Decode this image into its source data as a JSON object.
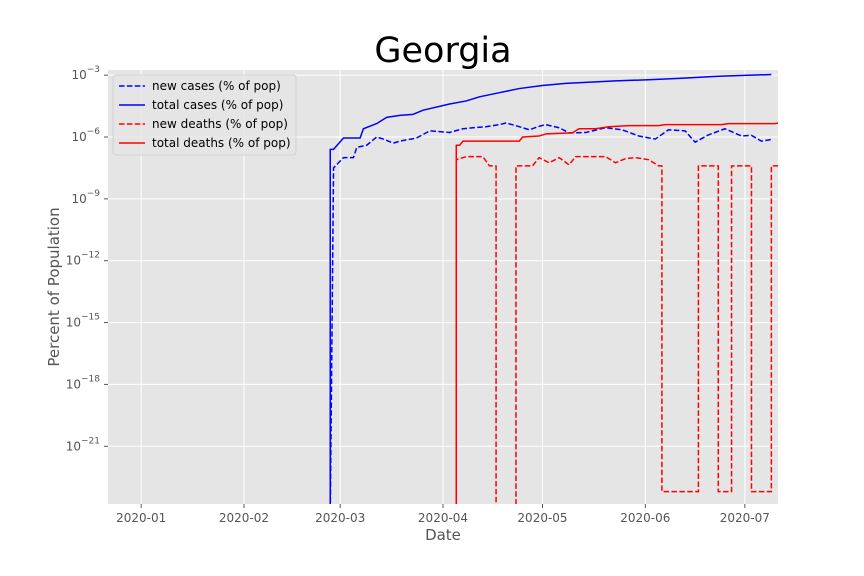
{
  "chart_data": {
    "type": "line",
    "title": "Georgia",
    "xlabel": "Date",
    "ylabel": "Percent of Population",
    "y_scale": "log",
    "grid": true,
    "legend_position": "top-left",
    "x_ticks": [
      "2020-01",
      "2020-02",
      "2020-03",
      "2020-04",
      "2020-05",
      "2020-06",
      "2020-07"
    ],
    "y_ticks": [
      {
        "exp": -3
      },
      {
        "exp": -6
      },
      {
        "exp": -9
      },
      {
        "exp": -12
      },
      {
        "exp": -15
      },
      {
        "exp": -18
      },
      {
        "exp": -21
      }
    ],
    "xlim": [
      "2019-12-22",
      "2020-07-11"
    ],
    "ylim_exp": [
      -23.8,
      -2.75
    ],
    "series": [
      {
        "name": "new cases (% of pop)",
        "color": "#0000ff",
        "style": "dashed",
        "points": [
          [
            "2020-02-27",
            -24.5
          ],
          [
            "2020-02-28",
            -7.5
          ],
          [
            "2020-03-02",
            -7.0
          ],
          [
            "2020-03-05",
            -7.0
          ],
          [
            "2020-03-06",
            -6.5
          ],
          [
            "2020-03-09",
            -6.4
          ],
          [
            "2020-03-12",
            -6.0
          ],
          [
            "2020-03-14",
            -6.1
          ],
          [
            "2020-03-17",
            -6.3
          ],
          [
            "2020-03-19",
            -6.2
          ],
          [
            "2020-03-24",
            -6.05
          ],
          [
            "2020-03-28",
            -5.7
          ],
          [
            "2020-04-03",
            -5.78
          ],
          [
            "2020-04-07",
            -5.6
          ],
          [
            "2020-04-10",
            -5.55
          ],
          [
            "2020-04-14",
            -5.5
          ],
          [
            "2020-04-18",
            -5.4
          ],
          [
            "2020-04-20",
            -5.32
          ],
          [
            "2020-04-23",
            -5.45
          ],
          [
            "2020-04-27",
            -5.65
          ],
          [
            "2020-04-30",
            -5.48
          ],
          [
            "2020-05-02",
            -5.4
          ],
          [
            "2020-05-06",
            -5.55
          ],
          [
            "2020-05-09",
            -5.8
          ],
          [
            "2020-05-14",
            -5.78
          ],
          [
            "2020-05-20",
            -5.55
          ],
          [
            "2020-05-25",
            -5.65
          ],
          [
            "2020-05-30",
            -5.95
          ],
          [
            "2020-06-04",
            -6.1
          ],
          [
            "2020-06-08",
            -5.65
          ],
          [
            "2020-06-13",
            -5.7
          ],
          [
            "2020-06-16",
            -6.25
          ],
          [
            "2020-06-20",
            -5.9
          ],
          [
            "2020-06-25",
            -5.6
          ],
          [
            "2020-06-30",
            -5.95
          ],
          [
            "2020-07-03",
            -5.92
          ],
          [
            "2020-07-06",
            -6.2
          ],
          [
            "2020-07-09",
            -6.12
          ]
        ]
      },
      {
        "name": "total cases (% of pop)",
        "color": "#0000ff",
        "style": "solid",
        "points": [
          [
            "2020-02-27",
            -24.5
          ],
          [
            "2020-02-27",
            -6.6
          ],
          [
            "2020-02-28",
            -6.6
          ],
          [
            "2020-03-02",
            -6.05
          ],
          [
            "2020-03-07",
            -6.05
          ],
          [
            "2020-03-08",
            -5.6
          ],
          [
            "2020-03-12",
            -5.35
          ],
          [
            "2020-03-15",
            -5.05
          ],
          [
            "2020-03-19",
            -4.95
          ],
          [
            "2020-03-23",
            -4.9
          ],
          [
            "2020-03-26",
            -4.7
          ],
          [
            "2020-04-03",
            -4.4
          ],
          [
            "2020-04-08",
            -4.25
          ],
          [
            "2020-04-12",
            -4.05
          ],
          [
            "2020-04-18",
            -3.85
          ],
          [
            "2020-04-24",
            -3.65
          ],
          [
            "2020-05-01",
            -3.5
          ],
          [
            "2020-05-08",
            -3.4
          ],
          [
            "2020-05-14",
            -3.35
          ],
          [
            "2020-05-23",
            -3.28
          ],
          [
            "2020-06-02",
            -3.22
          ],
          [
            "2020-06-12",
            -3.15
          ],
          [
            "2020-06-23",
            -3.05
          ],
          [
            "2020-07-09",
            -2.97
          ]
        ]
      },
      {
        "name": "new deaths (% of pop)",
        "color": "#ff0000",
        "style": "dashed",
        "points": [
          [
            "2020-04-05",
            -24.5
          ],
          [
            "2020-04-05",
            -7.1
          ],
          [
            "2020-04-08",
            -6.95
          ],
          [
            "2020-04-13",
            -6.95
          ],
          [
            "2020-04-15",
            -7.4
          ],
          [
            "2020-04-17",
            -7.4
          ],
          [
            "2020-04-17",
            -24.5
          ],
          [
            "2020-04-23",
            -24.5
          ],
          [
            "2020-04-23",
            -7.4
          ],
          [
            "2020-04-28",
            -7.4
          ],
          [
            "2020-04-30",
            -7.0
          ],
          [
            "2020-05-03",
            -7.25
          ],
          [
            "2020-05-06",
            -7.0
          ],
          [
            "2020-05-09",
            -7.35
          ],
          [
            "2020-05-11",
            -6.95
          ],
          [
            "2020-05-20",
            -6.95
          ],
          [
            "2020-05-23",
            -7.25
          ],
          [
            "2020-05-26",
            -7.05
          ],
          [
            "2020-05-29",
            -7.0
          ],
          [
            "2020-06-02",
            -7.1
          ],
          [
            "2020-06-05",
            -7.4
          ],
          [
            "2020-06-06",
            -7.4
          ],
          [
            "2020-06-06",
            -23.2
          ],
          [
            "2020-06-17",
            -23.2
          ],
          [
            "2020-06-17",
            -7.4
          ],
          [
            "2020-06-23",
            -7.4
          ],
          [
            "2020-06-23",
            -23.2
          ],
          [
            "2020-06-27",
            -23.2
          ],
          [
            "2020-06-27",
            -7.4
          ],
          [
            "2020-07-03",
            -7.4
          ],
          [
            "2020-07-03",
            -23.2
          ],
          [
            "2020-07-09",
            -23.2
          ],
          [
            "2020-07-09",
            -7.4
          ],
          [
            "2020-07-14",
            -7.4
          ]
        ]
      },
      {
        "name": "total deaths (% of pop)",
        "color": "#ff0000",
        "style": "solid",
        "points": [
          [
            "2020-04-05",
            -24.5
          ],
          [
            "2020-04-05",
            -6.4
          ],
          [
            "2020-04-06",
            -6.4
          ],
          [
            "2020-04-07",
            -6.2
          ],
          [
            "2020-04-24",
            -6.2
          ],
          [
            "2020-04-25",
            -6.0
          ],
          [
            "2020-04-30",
            -5.95
          ],
          [
            "2020-05-02",
            -5.85
          ],
          [
            "2020-05-10",
            -5.8
          ],
          [
            "2020-05-12",
            -5.6
          ],
          [
            "2020-05-17",
            -5.6
          ],
          [
            "2020-05-21",
            -5.5
          ],
          [
            "2020-05-27",
            -5.45
          ],
          [
            "2020-06-05",
            -5.45
          ],
          [
            "2020-06-07",
            -5.4
          ],
          [
            "2020-06-24",
            -5.4
          ],
          [
            "2020-06-26",
            -5.35
          ],
          [
            "2020-07-10",
            -5.35
          ],
          [
            "2020-07-12",
            -5.3
          ],
          [
            "2020-07-14",
            -5.3
          ]
        ]
      }
    ]
  }
}
